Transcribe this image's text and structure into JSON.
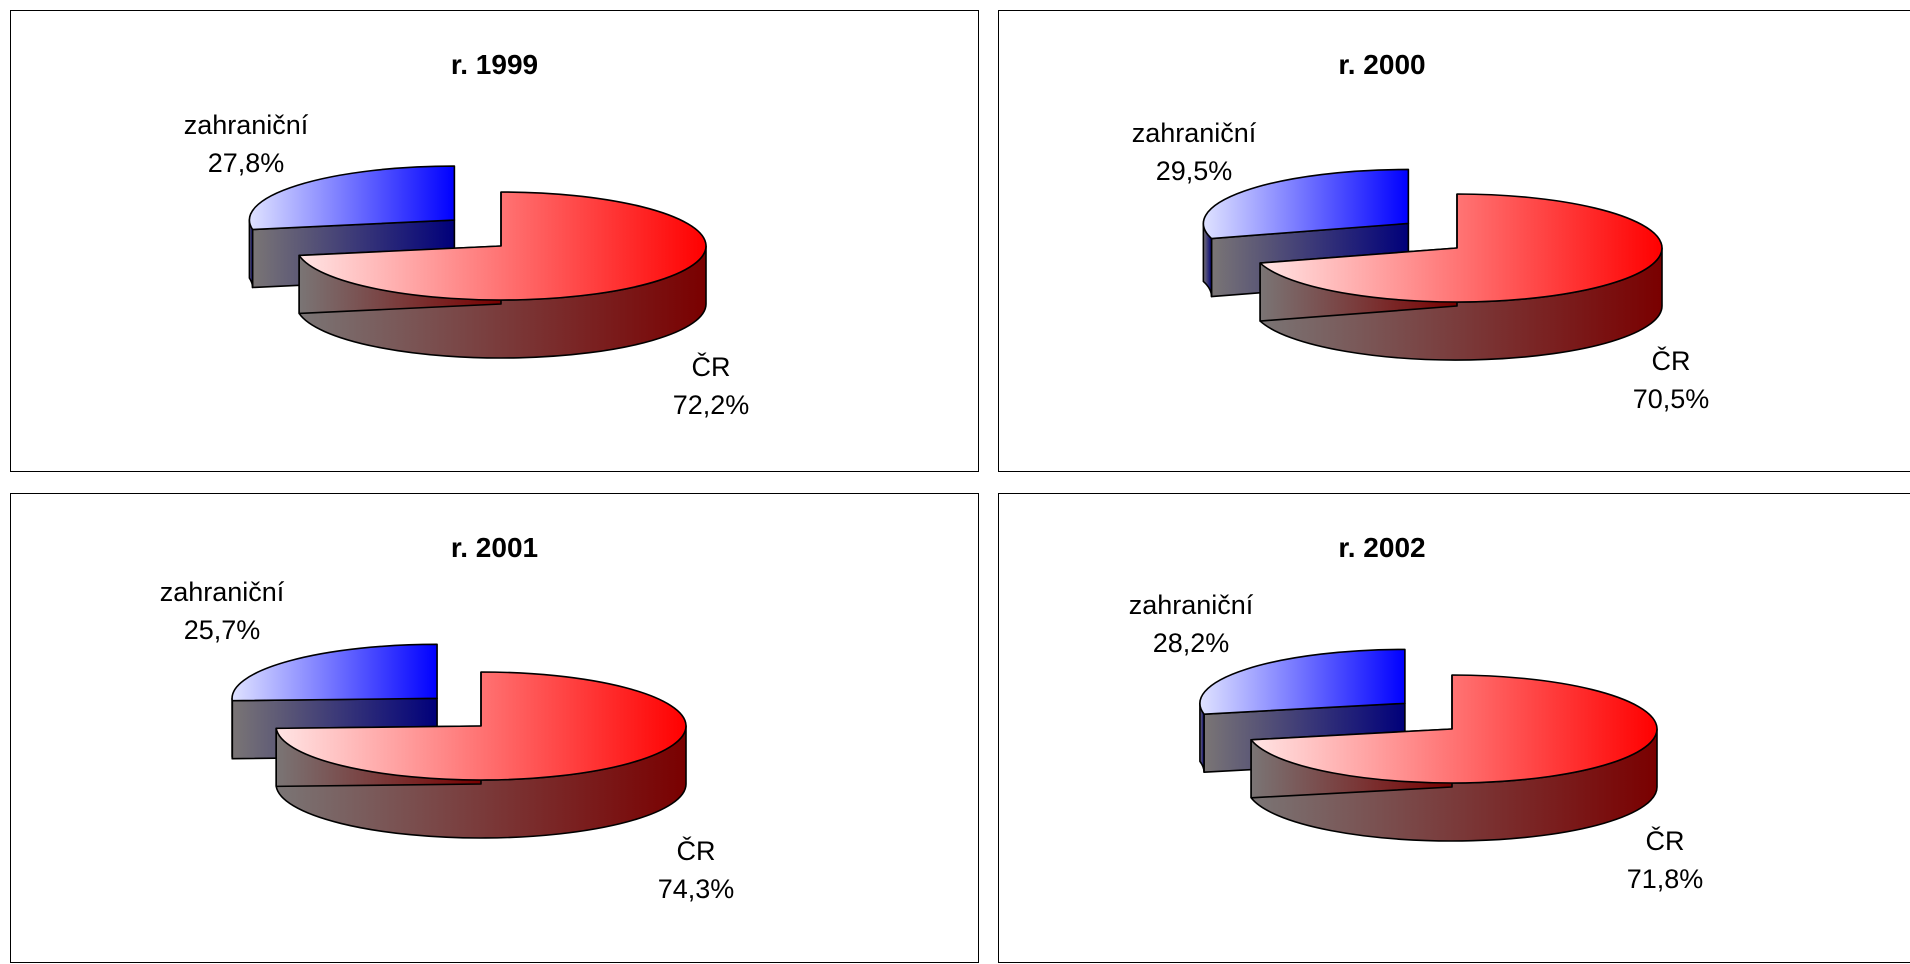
{
  "colors": {
    "foreign_light": "#dfe2ff",
    "foreign_dark": "#0000ff",
    "domestic_light": "#ffe5e5",
    "domestic_dark": "#ff0000",
    "side_gray": "#7a7575",
    "side_red": "#7a0000",
    "side_blue": "#00007a"
  },
  "chart_data": [
    {
      "type": "pie",
      "title": "r. 1999",
      "slices": [
        {
          "label": "zahraniční",
          "value": 27.8,
          "value_label": "27,8%"
        },
        {
          "label": "ČR",
          "value": 72.2,
          "value_label": "72,2%"
        }
      ],
      "exploded": "zahraniční",
      "style": "3d"
    },
    {
      "type": "pie",
      "title": "r. 2000",
      "slices": [
        {
          "label": "zahraniční",
          "value": 29.5,
          "value_label": "29,5%"
        },
        {
          "label": "ČR",
          "value": 70.5,
          "value_label": "70,5%"
        }
      ],
      "exploded": "zahraniční",
      "style": "3d"
    },
    {
      "type": "pie",
      "title": "r. 2001",
      "slices": [
        {
          "label": "zahraniční",
          "value": 25.7,
          "value_label": "25,7%"
        },
        {
          "label": "ČR",
          "value": 74.3,
          "value_label": "74,3%"
        }
      ],
      "exploded": "zahraniční",
      "style": "3d"
    },
    {
      "type": "pie",
      "title": "r. 2002",
      "slices": [
        {
          "label": "zahraniční",
          "value": 28.2,
          "value_label": "28,2%"
        },
        {
          "label": "ČR",
          "value": 71.8,
          "value_label": "71,8%"
        }
      ],
      "exploded": "zahraniční",
      "style": "3d"
    }
  ]
}
